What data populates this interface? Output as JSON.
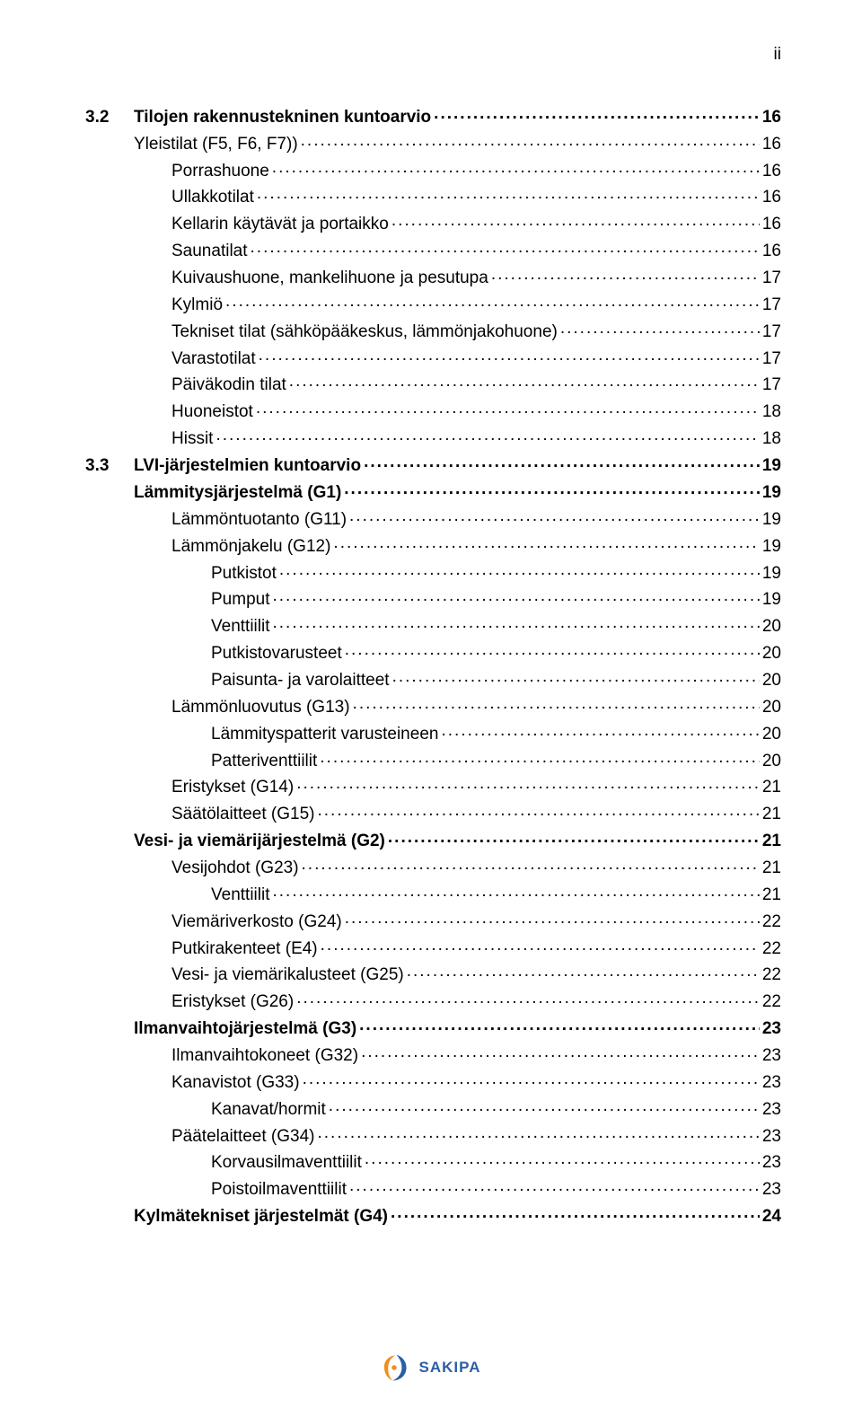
{
  "page_number": "ii",
  "footer": {
    "brand": "SAKIPA",
    "brand_color": "#2b5ea5",
    "accent_color": "#f28c1a"
  },
  "toc": [
    {
      "num": "3.2",
      "title": "Tilojen rakennustekninen kuntoarvio",
      "page": "16",
      "level": 0,
      "bold": true
    },
    {
      "title": "Yleistilat (F5, F6, F7))",
      "page": "16",
      "level": 1
    },
    {
      "title": "Porrashuone",
      "page": "16",
      "level": 2
    },
    {
      "title": "Ullakkotilat",
      "page": "16",
      "level": 2
    },
    {
      "title": "Kellarin käytävät ja portaikko",
      "page": "16",
      "level": 2
    },
    {
      "title": "Saunatilat",
      "page": "16",
      "level": 2
    },
    {
      "title": "Kuivaushuone, mankelihuone ja pesutupa",
      "page": "17",
      "level": 2
    },
    {
      "title": "Kylmiö",
      "page": "17",
      "level": 2
    },
    {
      "title": "Tekniset tilat (sähköpääkeskus, lämmönjakohuone)",
      "page": "17",
      "level": 2
    },
    {
      "title": "Varastotilat",
      "page": "17",
      "level": 2
    },
    {
      "title": "Päiväkodin tilat",
      "page": "17",
      "level": 2
    },
    {
      "title": "Huoneistot",
      "page": "18",
      "level": 2
    },
    {
      "title": "Hissit",
      "page": "18",
      "level": 2
    },
    {
      "num": "3.3",
      "title": "LVI-järjestelmien kuntoarvio",
      "page": "19",
      "level": 0,
      "bold": true
    },
    {
      "title": "Lämmitysjärjestelmä (G1)",
      "page": "19",
      "level": 1,
      "bold": true
    },
    {
      "title": "Lämmöntuotanto (G11)",
      "page": "19",
      "level": 2
    },
    {
      "title": "Lämmönjakelu (G12)",
      "page": "19",
      "level": 2
    },
    {
      "title": "Putkistot",
      "page": "19",
      "level": 3
    },
    {
      "title": "Pumput",
      "page": "19",
      "level": 3
    },
    {
      "title": "Venttiilit",
      "page": "20",
      "level": 3
    },
    {
      "title": "Putkistovarusteet",
      "page": "20",
      "level": 3
    },
    {
      "title": "Paisunta- ja varolaitteet",
      "page": "20",
      "level": 3
    },
    {
      "title": "Lämmönluovutus (G13)",
      "page": "20",
      "level": 2
    },
    {
      "title": "Lämmityspatterit varusteineen",
      "page": "20",
      "level": 3
    },
    {
      "title": "Patteriventtiilit",
      "page": "20",
      "level": 3
    },
    {
      "title": "Eristykset (G14)",
      "page": "21",
      "level": 2
    },
    {
      "title": "Säätölaitteet (G15)",
      "page": "21",
      "level": 2
    },
    {
      "title": "Vesi- ja viemärijärjestelmä (G2)",
      "page": "21",
      "level": 1,
      "bold": true
    },
    {
      "title": "Vesijohdot (G23)",
      "page": "21",
      "level": 2
    },
    {
      "title": "Venttiilit",
      "page": "21",
      "level": 3
    },
    {
      "title": "Viemäriverkosto (G24)",
      "page": "22",
      "level": 2
    },
    {
      "title": "Putkirakenteet (E4)",
      "page": "22",
      "level": 2
    },
    {
      "title": "Vesi- ja viemärikalusteet (G25)",
      "page": "22",
      "level": 2
    },
    {
      "title": "Eristykset (G26)",
      "page": "22",
      "level": 2
    },
    {
      "title": "Ilmanvaihtojärjestelmä (G3)",
      "page": "23",
      "level": 1,
      "bold": true
    },
    {
      "title": "Ilmanvaihtokoneet (G32)",
      "page": "23",
      "level": 2
    },
    {
      "title": "Kanavistot (G33)",
      "page": "23",
      "level": 2
    },
    {
      "title": "Kanavat/hormit",
      "page": "23",
      "level": 3
    },
    {
      "title": "Päätelaitteet (G34)",
      "page": "23",
      "level": 2
    },
    {
      "title": "Korvausilmaventtiilit",
      "page": "23",
      "level": 3
    },
    {
      "title": "Poistoilmaventtiilit",
      "page": "23",
      "level": 3
    },
    {
      "title": "Kylmätekniset järjestelmät (G4)",
      "page": "24",
      "level": 1,
      "bold": true
    }
  ]
}
